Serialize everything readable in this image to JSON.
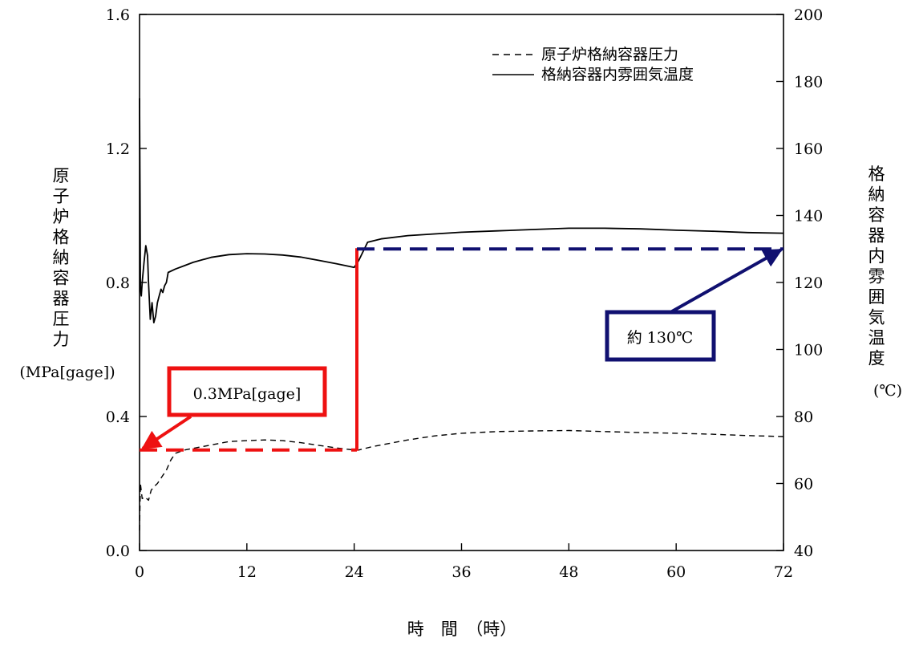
{
  "chart_data": {
    "type": "line",
    "title": "",
    "xlabel": "時　間　（時）",
    "xlim": [
      0,
      72
    ],
    "x_ticks": [
      "0",
      "12",
      "24",
      "36",
      "48",
      "60",
      "72"
    ],
    "y_left": {
      "label_chars": [
        "原",
        "子",
        "炉",
        "格",
        "納",
        "容",
        "器",
        "圧",
        "力"
      ],
      "unit": "(MPa[gage])",
      "ylim": [
        0.0,
        1.6
      ],
      "ticks": [
        "0.0",
        "0.4",
        "0.8",
        "1.2",
        "1.6"
      ]
    },
    "y_right": {
      "label_chars": [
        "格",
        "納",
        "容",
        "器",
        "内",
        "雰",
        "囲",
        "気",
        "温",
        "度"
      ],
      "unit": "(℃)",
      "ylim": [
        40,
        200
      ],
      "ticks": [
        "40",
        "60",
        "80",
        "100",
        "120",
        "140",
        "160",
        "180",
        "200"
      ]
    },
    "legend_position": "top-right",
    "series": [
      {
        "name": "原子炉格納容器圧力",
        "axis": "left",
        "style": "dashed",
        "color": "#000000",
        "x": [
          0,
          0.1,
          0.3,
          0.6,
          1.0,
          1.3,
          1.6,
          2.0,
          2.5,
          3.0,
          3.5,
          4.0,
          5.0,
          6.0,
          8.0,
          10.0,
          12.0,
          14.0,
          16.0,
          18.0,
          20.0,
          22.0,
          24.0,
          24.5,
          26.0,
          28.0,
          30.0,
          33.0,
          36.0,
          40.0,
          44.0,
          48.0,
          52.0,
          56.0,
          60.0,
          64.0,
          68.0,
          72.0
        ],
        "values": [
          0.06,
          0.2,
          0.155,
          0.16,
          0.15,
          0.18,
          0.19,
          0.2,
          0.22,
          0.24,
          0.27,
          0.29,
          0.3,
          0.305,
          0.315,
          0.325,
          0.328,
          0.33,
          0.328,
          0.322,
          0.314,
          0.306,
          0.3,
          0.3,
          0.31,
          0.32,
          0.33,
          0.342,
          0.35,
          0.355,
          0.357,
          0.358,
          0.355,
          0.352,
          0.35,
          0.347,
          0.343,
          0.34
        ]
      },
      {
        "name": "格納容器内雰囲気温度",
        "axis": "right",
        "style": "solid",
        "color": "#000000",
        "x": [
          0,
          0.05,
          0.1,
          0.2,
          0.3,
          0.5,
          0.7,
          0.9,
          1.0,
          1.2,
          1.4,
          1.6,
          1.8,
          2.0,
          2.2,
          2.4,
          2.6,
          2.8,
          3.0,
          3.2,
          4.0,
          5.0,
          6.0,
          8.0,
          10.0,
          12.0,
          14.0,
          16.0,
          18.0,
          20.0,
          22.0,
          24.0,
          24.5,
          25.5,
          27.0,
          30.0,
          33.0,
          36.0,
          40.0,
          44.0,
          48.0,
          52.0,
          56.0,
          60.0,
          64.0,
          68.0,
          72.0
        ],
        "values": [
          175,
          146,
          118,
          116,
          120,
          126,
          131,
          128,
          120,
          109,
          114,
          108,
          110,
          114,
          116,
          118,
          117,
          119,
          120,
          123,
          124,
          125,
          126,
          127.5,
          128.3,
          128.6,
          128.5,
          128.2,
          127.6,
          126.6,
          125.6,
          124.5,
          126.5,
          132,
          133,
          134,
          134.5,
          135,
          135.4,
          135.8,
          136.2,
          136.2,
          136,
          135.6,
          135.3,
          134.9,
          134.7
        ]
      }
    ],
    "annotations": [
      {
        "text": "0.3MPa[gage]",
        "color": "#ee1111",
        "axis": "left",
        "level": 0.3,
        "x_range": [
          0,
          24.3
        ],
        "arrow_to": [
          0,
          0.3
        ]
      },
      {
        "text": "約 130℃",
        "color": "#101070",
        "axis": "right",
        "level": 130,
        "x_range": [
          24.3,
          72
        ],
        "arrow_to": [
          72,
          130
        ]
      }
    ]
  }
}
